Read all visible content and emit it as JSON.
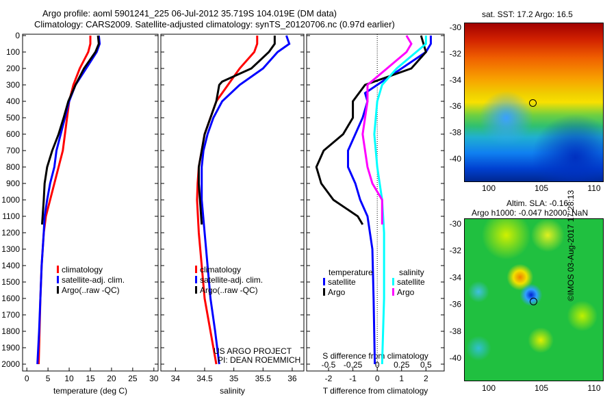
{
  "title_line1": "Argo profile: aoml 5901241_225 06-Jul-2012 35.719S 104.019E (DM data)",
  "title_line2": "Climatology: CARS2009. Satellite-adjusted climatology: synTS_20120706.nc (0.97d earlier)",
  "credit": "©IMOS 03-Aug-2017 17:28:13",
  "project": [
    "US ARGO PROJECT",
    "PI: DEAN ROEMMICH"
  ],
  "colors": {
    "clim": "#ff0000",
    "sat": "#0000ff",
    "argo": "#000000",
    "s_sat": "#00ffff",
    "s_argo": "#ff00ff"
  },
  "chart_data": [
    {
      "type": "line",
      "xlabel": "temperature (deg C)",
      "xlim": [
        -1,
        31
      ],
      "ylim": [
        2050,
        0
      ],
      "xticks": [
        0,
        5,
        10,
        15,
        20,
        25,
        30
      ],
      "yticks": [
        0,
        100,
        200,
        300,
        400,
        500,
        600,
        700,
        800,
        900,
        1000,
        1100,
        1200,
        1300,
        1400,
        1500,
        1600,
        1700,
        1800,
        1900,
        2000
      ],
      "legend": [
        "climatology",
        "satellite-adj. clim.",
        "Argo(..raw -QC)"
      ],
      "series": [
        {
          "name": "climatology",
          "color": "#ff0000",
          "depth": [
            0,
            50,
            100,
            200,
            300,
            400,
            500,
            600,
            700,
            800,
            900,
            1000,
            1100,
            1200,
            1400,
            1600,
            1800,
            2000
          ],
          "values": [
            15,
            15,
            14.5,
            12.5,
            11,
            10,
            9.5,
            9,
            8.5,
            7.5,
            6.5,
            5.5,
            4.5,
            4,
            3.5,
            3.2,
            3,
            2.8
          ]
        },
        {
          "name": "satellite-adj. clim.",
          "color": "#0000ff",
          "depth": [
            0,
            50,
            100,
            200,
            300,
            400,
            500,
            600,
            700,
            800,
            900,
            1000,
            1100,
            1200,
            1400,
            1600,
            1800,
            2000
          ],
          "values": [
            17,
            17.2,
            16.5,
            14,
            11.5,
            10,
            9,
            8,
            7,
            6.5,
            5.5,
            4.8,
            4.2,
            4,
            3.5,
            3.2,
            2.9,
            2.5
          ]
        },
        {
          "name": "Argo(..raw -QC)",
          "color": "#000000",
          "depth": [
            0,
            50,
            100,
            200,
            300,
            400,
            500,
            600,
            700,
            800,
            900,
            1000,
            1150
          ],
          "values": [
            16.8,
            17,
            16.2,
            13.5,
            11.5,
            9.8,
            8.7,
            7.5,
            6,
            4.8,
            4.2,
            4,
            3.6
          ]
        }
      ]
    },
    {
      "type": "line",
      "xlabel": "salinity",
      "xlim": [
        33.75,
        36.2
      ],
      "ylim": [
        2050,
        0
      ],
      "xticks": [
        34,
        34.5,
        35,
        35.5,
        36
      ],
      "legend": [
        "climatology",
        "satellite-adj. clim.",
        "Argo(..raw -QC)"
      ],
      "series": [
        {
          "name": "climatology",
          "color": "#ff0000",
          "depth": [
            0,
            50,
            100,
            200,
            300,
            400,
            500,
            600,
            700,
            800,
            900,
            1000,
            1200,
            1400,
            1600,
            1800,
            2000
          ],
          "values": [
            35.4,
            35.4,
            35.35,
            35.1,
            34.9,
            34.7,
            34.6,
            34.5,
            34.45,
            34.4,
            34.38,
            34.37,
            34.4,
            34.45,
            34.5,
            34.6,
            34.7
          ]
        },
        {
          "name": "satellite-adj. clim.",
          "color": "#0000ff",
          "depth": [
            0,
            50,
            100,
            200,
            300,
            400,
            500,
            600,
            700,
            800,
            900,
            1000,
            1200,
            1400,
            1600,
            1800,
            2000
          ],
          "values": [
            35.9,
            35.95,
            35.75,
            35.5,
            35.1,
            34.8,
            34.65,
            34.55,
            34.48,
            34.45,
            34.45,
            34.45,
            34.5,
            34.55,
            34.6,
            34.68,
            34.75
          ]
        },
        {
          "name": "Argo(..raw -QC)",
          "color": "#000000",
          "depth": [
            0,
            50,
            100,
            200,
            280,
            300,
            400,
            500,
            600,
            700,
            800,
            900,
            1000,
            1150
          ],
          "values": [
            35.7,
            35.7,
            35.6,
            35.3,
            34.8,
            34.75,
            34.7,
            34.6,
            34.5,
            34.45,
            34.4,
            34.4,
            34.42,
            34.45
          ]
        }
      ]
    },
    {
      "type": "line",
      "xlabel": "T difference from climatology",
      "x2label": "S difference from climatology",
      "xlim": [
        -2.9,
        2.75
      ],
      "x2lim": [
        -0.725,
        0.6875
      ],
      "xticks": [
        -2,
        -1,
        0,
        1,
        2
      ],
      "x2ticks": [
        -0.5,
        -0.25,
        0,
        0.25,
        0.5
      ],
      "ylim": [
        2050,
        0
      ],
      "legend": {
        "temperature": "temperature",
        "salinity": "salinity",
        "satellite": "satellite",
        "argo": "Argo"
      },
      "series": [
        {
          "name": "T satellite",
          "axis": "T",
          "color": "#0000ff",
          "depth": [
            0,
            50,
            100,
            200,
            300,
            350,
            400,
            500,
            600,
            700,
            800,
            900,
            1000,
            1100,
            1300,
            1600,
            2000
          ],
          "values": [
            2.2,
            2.2,
            2,
            1,
            0,
            -0.5,
            -0.4,
            -0.6,
            -0.9,
            -1.2,
            -1.2,
            -0.9,
            -0.7,
            -0.4,
            -0.2,
            -0.15,
            -0.1
          ]
        },
        {
          "name": "T Argo",
          "axis": "T",
          "color": "#000000",
          "depth": [
            0,
            100,
            200,
            300,
            400,
            500,
            600,
            700,
            800,
            900,
            1000,
            1100,
            1150
          ],
          "values": [
            1.8,
            2,
            1.4,
            -0.5,
            -1,
            -1,
            -1.4,
            -2.2,
            -2.5,
            -2.3,
            -1.8,
            -0.8,
            -0.6
          ]
        },
        {
          "name": "S satellite",
          "axis": "S",
          "color": "#00ffff",
          "depth": [
            0,
            50,
            100,
            200,
            300,
            400,
            600,
            800,
            1000,
            1200,
            1600,
            2000
          ],
          "values": [
            0.5,
            0.5,
            0.4,
            0.2,
            0.05,
            0,
            -0.03,
            0,
            0.05,
            0.07,
            0.07,
            0.05
          ]
        },
        {
          "name": "S Argo",
          "axis": "S",
          "color": "#ff00ff",
          "depth": [
            0,
            50,
            100,
            200,
            300,
            400,
            600,
            800,
            900,
            1000,
            1150
          ],
          "values": [
            0.3,
            0.35,
            0.3,
            0.1,
            -0.1,
            -0.1,
            -0.15,
            -0.1,
            -0.05,
            0.05,
            0.05
          ]
        }
      ]
    }
  ],
  "map1": {
    "title": "sat. SST: 17.2 Argo: 16.5",
    "lat_ticks": [
      "-30",
      "-32",
      "-34",
      "-36",
      "-38",
      "-40"
    ],
    "lon_ticks": [
      "100",
      "105",
      "110"
    ]
  },
  "map2": {
    "title1": "Altim. SLA: -0.16",
    "title2": "Argo h1000: -0.047 h2000: NaN",
    "lat_ticks": [
      "-30",
      "-32",
      "-34",
      "-36",
      "-38",
      "-40"
    ],
    "lon_ticks": [
      "100",
      "105",
      "110"
    ]
  }
}
